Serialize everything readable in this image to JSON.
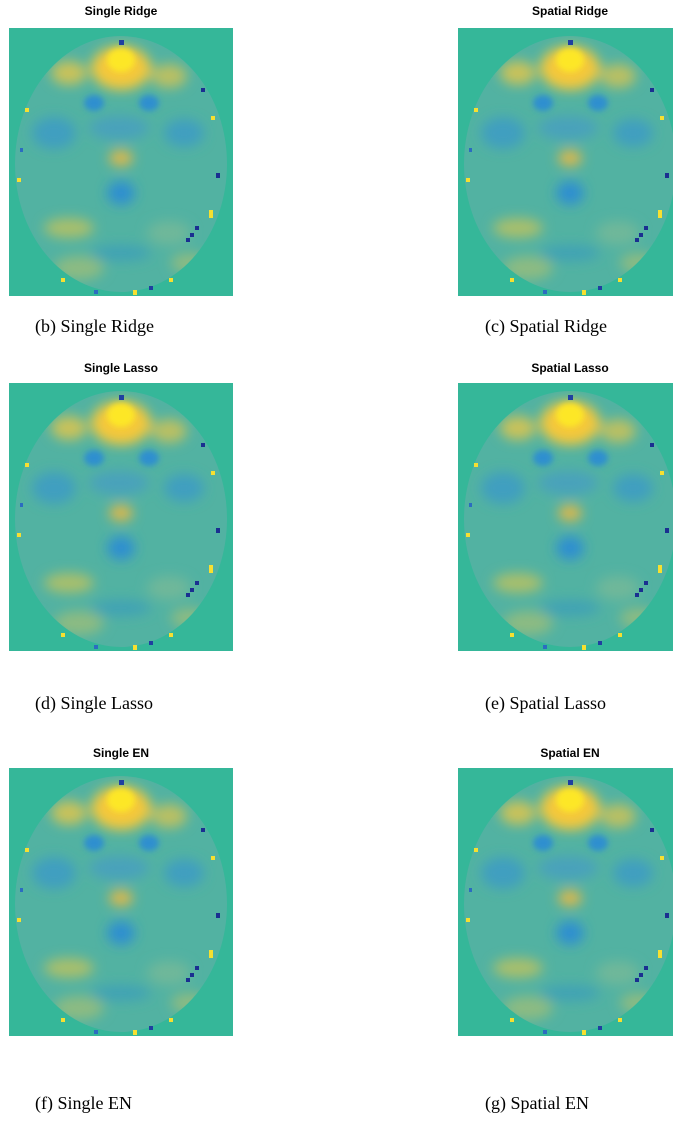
{
  "panels": [
    {
      "title": "Single Ridge",
      "caption": "(b) Single Ridge"
    },
    {
      "title": "Spatial Ridge",
      "caption": "(c) Spatial Ridge"
    },
    {
      "title": "Single Lasso",
      "caption": "(d) Single Lasso"
    },
    {
      "title": "Spatial Lasso",
      "caption": "(e) Spatial Lasso"
    },
    {
      "title": "Single EN",
      "caption": "(f) Single EN"
    },
    {
      "title": "Spatial EN",
      "caption": "(g) Spatial EN"
    }
  ]
}
